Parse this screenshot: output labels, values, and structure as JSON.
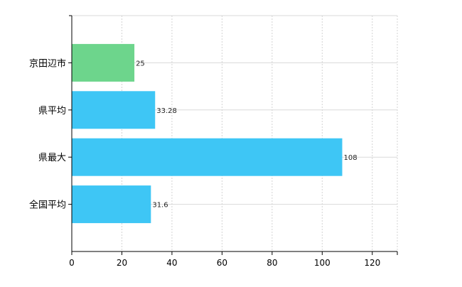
{
  "chart_data": {
    "type": "bar",
    "orientation": "horizontal",
    "categories": [
      "京田辺市",
      "県平均",
      "県最大",
      "全国平均"
    ],
    "values": [
      25,
      33.28,
      108,
      31.6
    ],
    "value_labels": [
      "25",
      "33.28",
      "108",
      "31.6"
    ],
    "bar_colors": [
      "#6dd58c",
      "#3ec6f5",
      "#3ec6f5",
      "#3ec6f5"
    ],
    "xlim": [
      0,
      130
    ],
    "x_ticks": [
      0,
      20,
      40,
      60,
      80,
      100,
      120
    ],
    "title": "",
    "xlabel": "",
    "ylabel": "",
    "grid": true,
    "legend": "none"
  }
}
